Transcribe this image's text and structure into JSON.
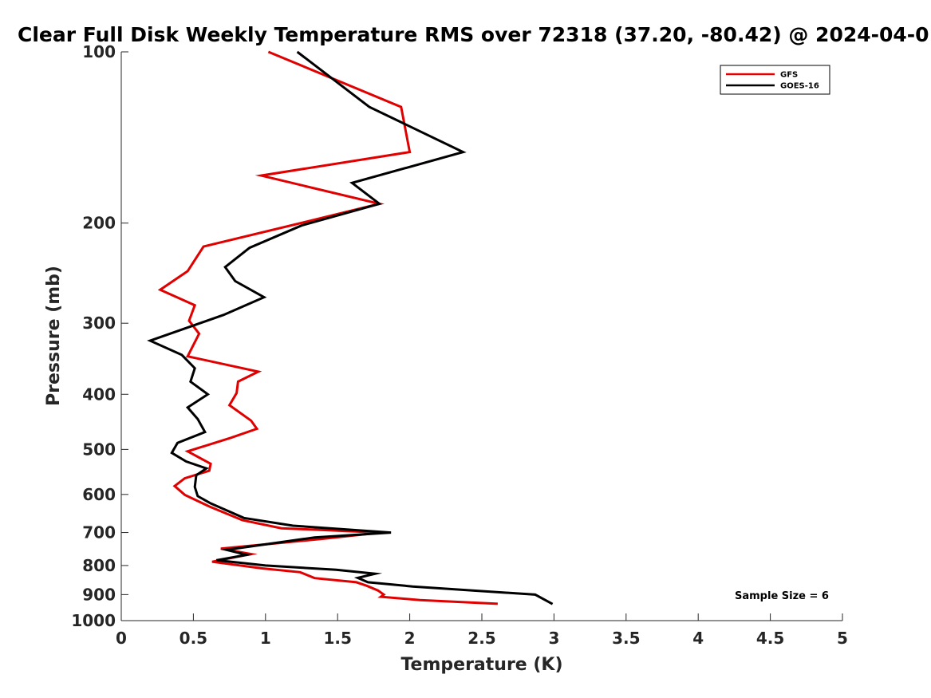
{
  "chart_data": {
    "type": "line",
    "title": "Clear Full Disk Weekly Temperature RMS over 72318 (37.20, -80.42) @ 2024-04-0",
    "xlabel": "Temperature (K)",
    "ylabel": "Pressure (mb)",
    "xlim": [
      0,
      5
    ],
    "ylim": [
      100,
      1000
    ],
    "y_scale": "log",
    "y_reversed": true,
    "xticks": [
      0,
      0.5,
      1,
      1.5,
      2,
      2.5,
      3,
      3.5,
      4,
      4.5,
      5
    ],
    "xtick_labels": [
      "0",
      "0.5",
      "1",
      "1.5",
      "2",
      "2.5",
      "3",
      "3.5",
      "4",
      "4.5",
      "5"
    ],
    "yticks": [
      100,
      200,
      300,
      400,
      500,
      600,
      700,
      800,
      900,
      1000
    ],
    "ytick_labels": [
      "100",
      "200",
      "300",
      "400",
      "500",
      "600",
      "700",
      "800",
      "900",
      "1000"
    ],
    "grid": false,
    "legend": "top-right",
    "annotation": "Sample Size = 6",
    "series": [
      {
        "name": "GFS",
        "color": "#e00000",
        "points": [
          [
            1.02,
            100
          ],
          [
            1.94,
            125
          ],
          [
            2.0,
            150
          ],
          [
            0.97,
            165
          ],
          [
            1.79,
            185
          ],
          [
            1.35,
            197
          ],
          [
            0.57,
            220
          ],
          [
            0.46,
            243
          ],
          [
            0.27,
            262
          ],
          [
            0.51,
            279
          ],
          [
            0.47,
            297
          ],
          [
            0.54,
            313
          ],
          [
            0.46,
            343
          ],
          [
            0.95,
            365
          ],
          [
            0.81,
            380
          ],
          [
            0.8,
            398
          ],
          [
            0.75,
            418
          ],
          [
            0.9,
            445
          ],
          [
            0.94,
            460
          ],
          [
            0.76,
            477
          ],
          [
            0.46,
            504
          ],
          [
            0.62,
            530
          ],
          [
            0.61,
            545
          ],
          [
            0.44,
            562
          ],
          [
            0.37,
            580
          ],
          [
            0.44,
            601
          ],
          [
            0.61,
            630
          ],
          [
            0.84,
            666
          ],
          [
            1.11,
            688
          ],
          [
            1.8,
            700
          ],
          [
            1.4,
            718
          ],
          [
            0.69,
            747
          ],
          [
            0.9,
            764
          ],
          [
            0.63,
            788
          ],
          [
            0.97,
            809
          ],
          [
            1.24,
            822
          ],
          [
            1.34,
            842
          ],
          [
            1.63,
            856
          ],
          [
            1.7,
            868
          ],
          [
            1.78,
            885
          ],
          [
            1.82,
            900
          ],
          [
            1.8,
            908
          ],
          [
            2.07,
            920
          ],
          [
            2.61,
            934
          ]
        ]
      },
      {
        "name": "GOES-16",
        "color": "#000000",
        "points": [
          [
            1.22,
            100
          ],
          [
            1.72,
            125
          ],
          [
            2.37,
            150
          ],
          [
            1.6,
            170
          ],
          [
            1.79,
            185
          ],
          [
            1.25,
            202
          ],
          [
            0.89,
            221
          ],
          [
            0.72,
            239
          ],
          [
            0.79,
            253
          ],
          [
            0.99,
            270
          ],
          [
            0.71,
            290
          ],
          [
            0.2,
            322
          ],
          [
            0.42,
            341
          ],
          [
            0.51,
            360
          ],
          [
            0.48,
            380
          ],
          [
            0.6,
            400
          ],
          [
            0.46,
            422
          ],
          [
            0.53,
            442
          ],
          [
            0.58,
            466
          ],
          [
            0.39,
            487
          ],
          [
            0.35,
            507
          ],
          [
            0.45,
            525
          ],
          [
            0.59,
            540
          ],
          [
            0.52,
            555
          ],
          [
            0.51,
            582
          ],
          [
            0.53,
            604
          ],
          [
            0.62,
            622
          ],
          [
            0.85,
            660
          ],
          [
            1.19,
            681
          ],
          [
            1.87,
            700
          ],
          [
            1.34,
            714
          ],
          [
            0.73,
            751
          ],
          [
            0.87,
            766
          ],
          [
            0.66,
            783
          ],
          [
            1.0,
            800
          ],
          [
            1.49,
            814
          ],
          [
            1.76,
            827
          ],
          [
            1.64,
            841
          ],
          [
            1.71,
            856
          ],
          [
            2.02,
            871
          ],
          [
            2.87,
            900
          ],
          [
            2.99,
            935
          ]
        ]
      }
    ]
  }
}
